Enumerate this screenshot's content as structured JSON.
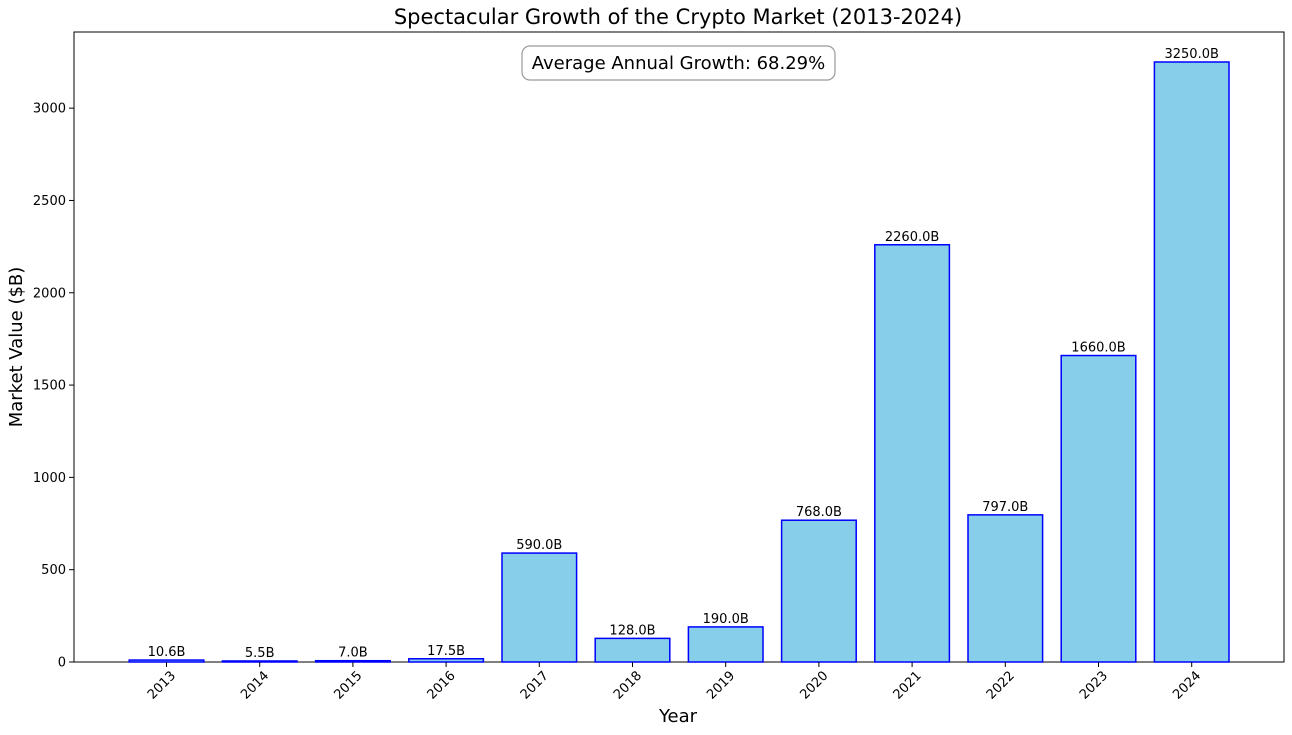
{
  "chart_data": {
    "type": "bar",
    "title": "Spectacular Growth of the Crypto Market (2013-2024)",
    "xlabel": "Year",
    "ylabel": "Market Value ($B)",
    "categories": [
      "2013",
      "2014",
      "2015",
      "2016",
      "2017",
      "2018",
      "2019",
      "2020",
      "2021",
      "2022",
      "2023",
      "2024"
    ],
    "values": [
      10.6,
      5.5,
      7.0,
      17.5,
      590.0,
      128.0,
      190.0,
      768.0,
      2260.0,
      797.0,
      1660.0,
      3250.0
    ],
    "value_labels": [
      "10.6B",
      "5.5B",
      "7.0B",
      "17.5B",
      "590.0B",
      "128.0B",
      "190.0B",
      "768.0B",
      "2260.0B",
      "797.0B",
      "1660.0B",
      "3250.0B"
    ],
    "ylim": [
      0,
      3412.5
    ],
    "yticks": [
      0,
      500,
      1000,
      1500,
      2000,
      2500,
      3000
    ],
    "grid": false,
    "bar_fill_color": "#87CEEB",
    "bar_edge_color": "#0000FF",
    "annotation": "Average Annual Growth: 68.29%"
  }
}
